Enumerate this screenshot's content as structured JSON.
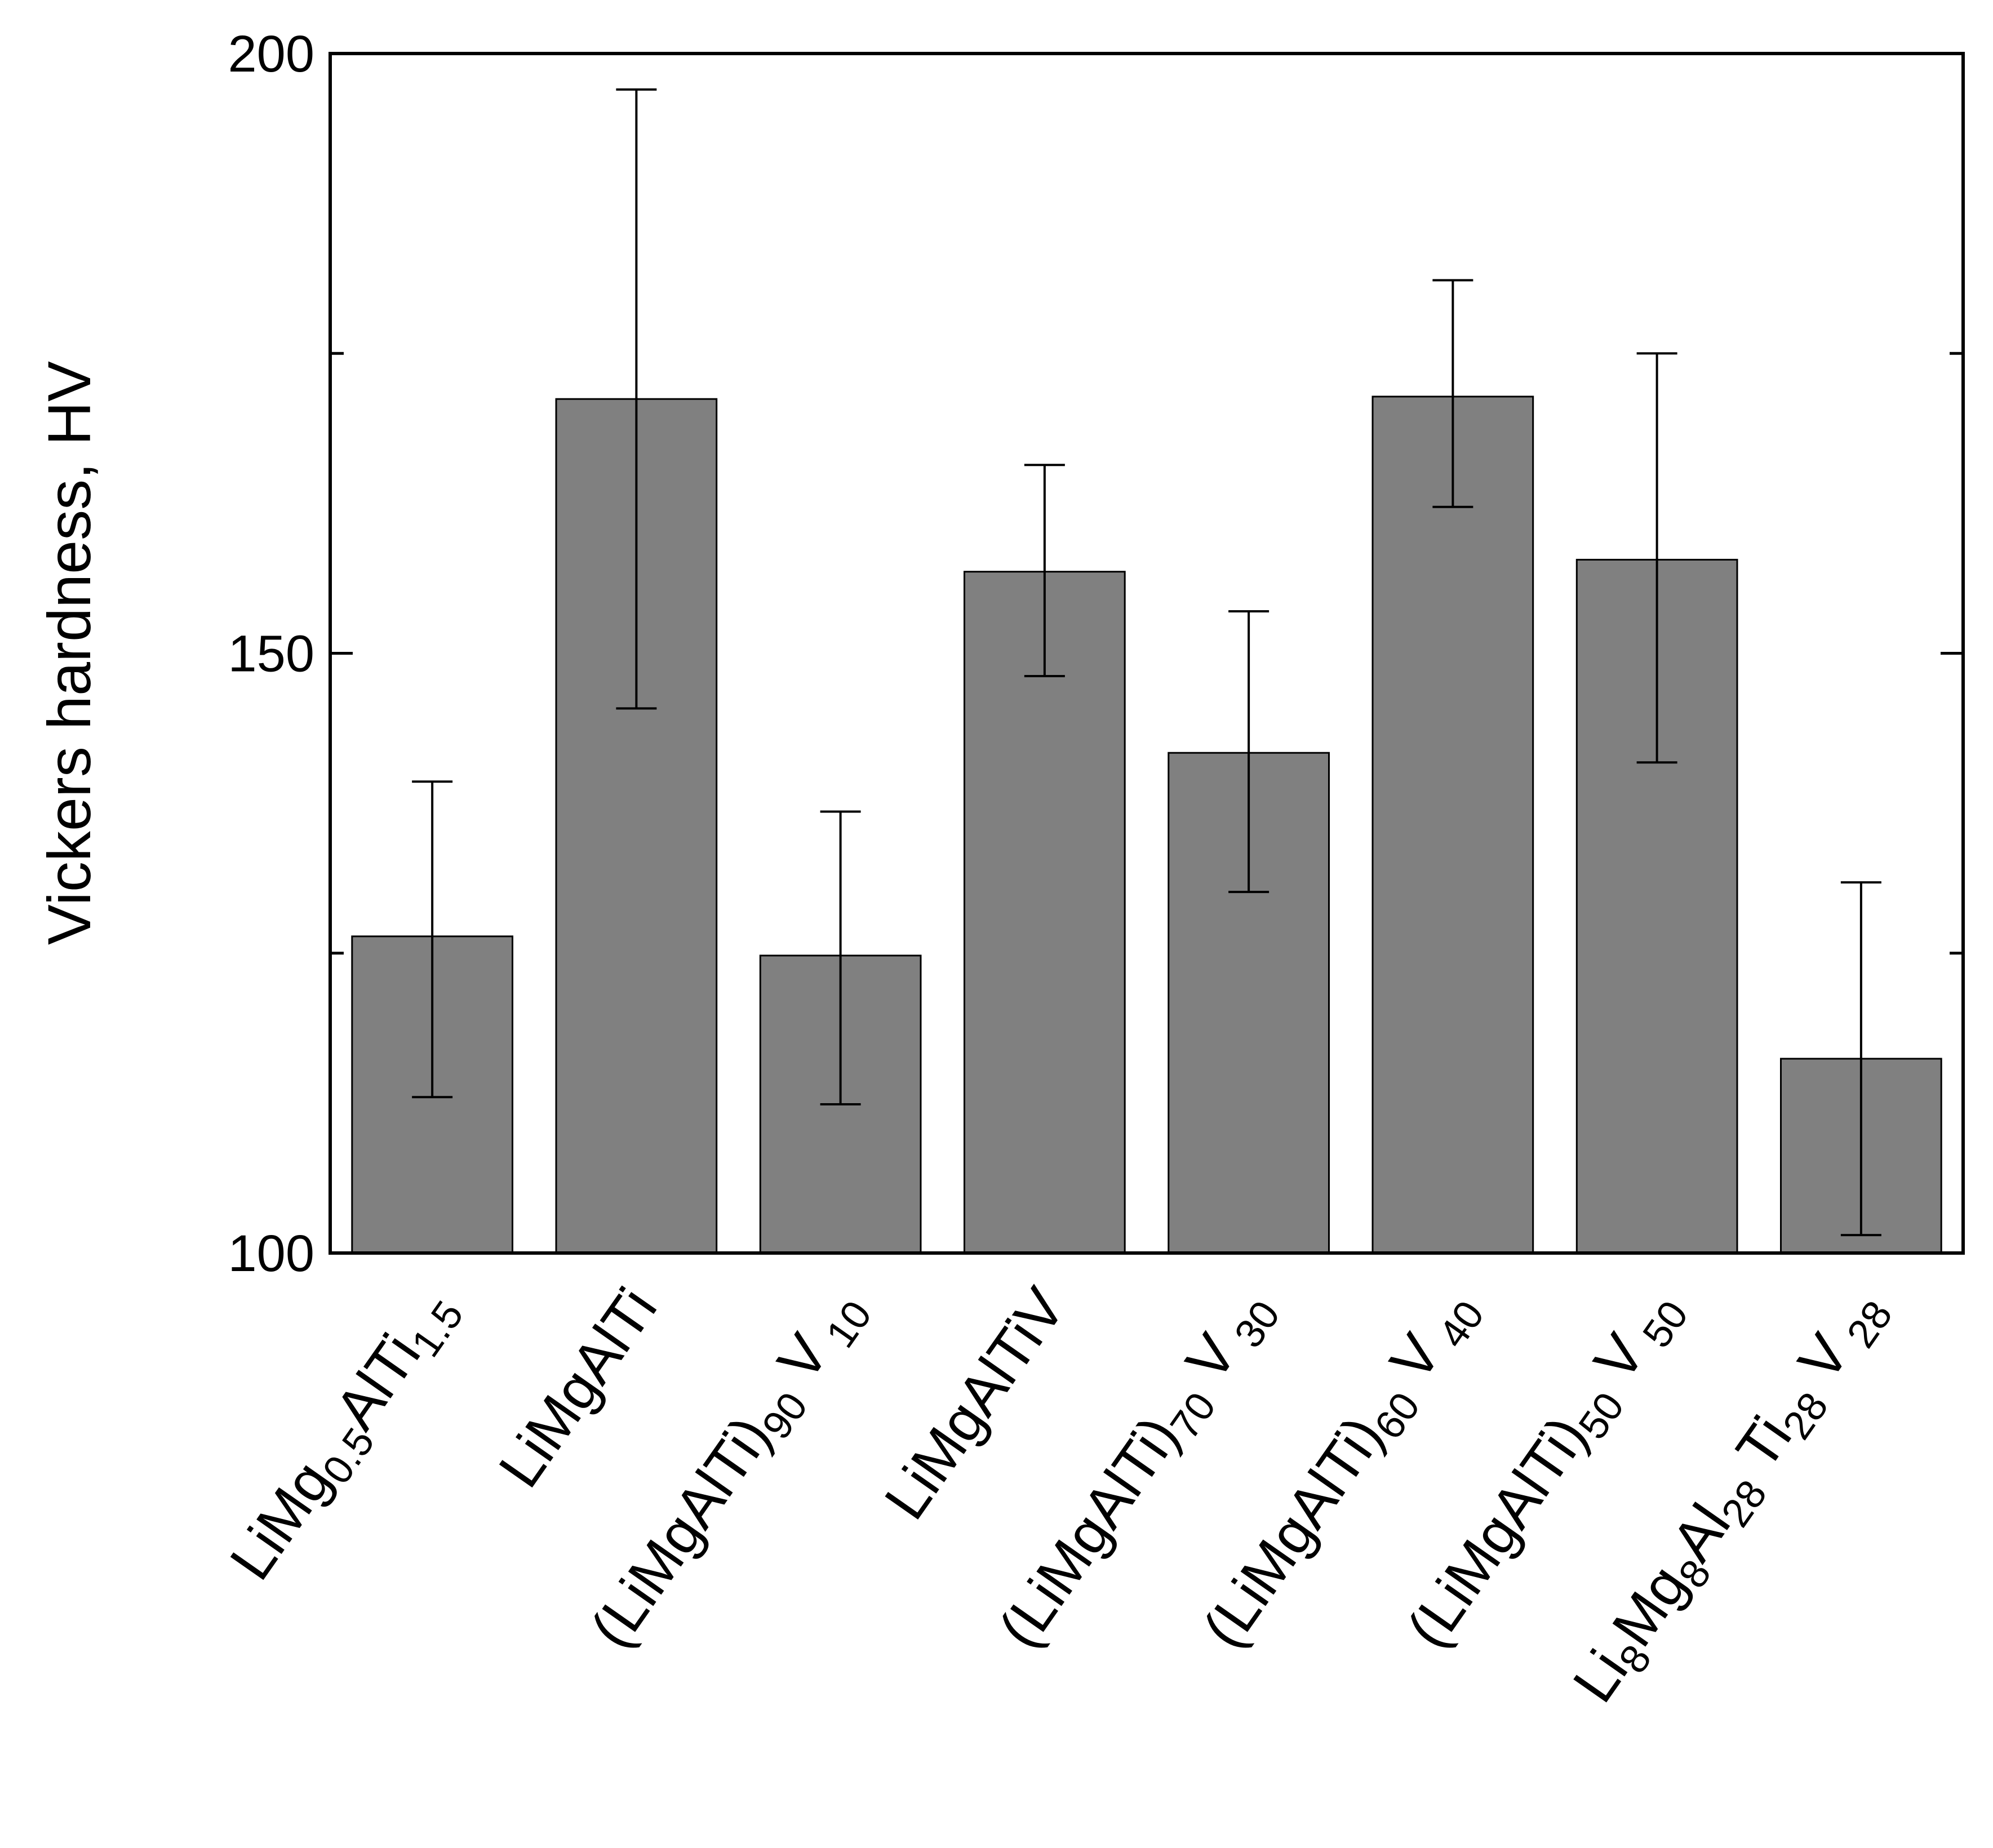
{
  "chart_data": {
    "type": "bar",
    "title": "",
    "xlabel": "",
    "ylabel": "Vickers hardness, HV",
    "ylim": [
      100,
      200
    ],
    "yticks": [
      100,
      150,
      200
    ],
    "minor_yticks": [
      125,
      175
    ],
    "grid": false,
    "bar_color": "#808080",
    "categories": [
      "LiMg0.5AlTi1.5",
      "LiMgAlTi",
      "(LiMgAlTi)90V10",
      "LiMgAlTiV",
      "(LiMgAlTi)70V30",
      "(LiMgAlTi)60V40",
      "(LiMgAlTi)50V50",
      "Li8Mg8Al28Ti28V28"
    ],
    "category_parts": [
      [
        {
          "t": "LiMg"
        },
        {
          "t": "0.5",
          "sub": true
        },
        {
          "t": "AlTi"
        },
        {
          "t": "1.5",
          "sub": true
        }
      ],
      [
        {
          "t": "LiMgAlTi"
        }
      ],
      [
        {
          "t": "(LiMgAlTi)"
        },
        {
          "t": "90",
          "sub": true
        },
        {
          "t": " V"
        },
        {
          "t": " 10",
          "sub": true
        }
      ],
      [
        {
          "t": "LiMgAlTiV"
        }
      ],
      [
        {
          "t": "(LiMgAlTi)"
        },
        {
          "t": "70",
          "sub": true
        },
        {
          "t": " V"
        },
        {
          "t": " 30",
          "sub": true
        }
      ],
      [
        {
          "t": "(LiMgAlTi)"
        },
        {
          "t": "60",
          "sub": true
        },
        {
          "t": " V"
        },
        {
          "t": " 40",
          "sub": true
        }
      ],
      [
        {
          "t": "(LiMgAlTi)"
        },
        {
          "t": "50",
          "sub": true
        },
        {
          "t": " V"
        },
        {
          "t": " 50",
          "sub": true
        }
      ],
      [
        {
          "t": "Li"
        },
        {
          "t": "8",
          "sub": true
        },
        {
          "t": "Mg"
        },
        {
          "t": "8",
          "sub": true
        },
        {
          "t": "Al"
        },
        {
          "t": "28",
          "sub": true
        },
        {
          "t": " Ti"
        },
        {
          "t": "28",
          "sub": true
        },
        {
          "t": " V"
        },
        {
          "t": " 28",
          "sub": true
        }
      ]
    ],
    "values": [
      126.4,
      171.2,
      124.8,
      156.8,
      141.7,
      171.4,
      157.8,
      116.2
    ],
    "error_low": [
      113.0,
      145.4,
      112.4,
      148.1,
      130.1,
      162.2,
      140.9,
      101.5
    ],
    "error_high": [
      139.3,
      197.0,
      136.8,
      165.7,
      153.5,
      181.1,
      175.0,
      130.9
    ]
  }
}
